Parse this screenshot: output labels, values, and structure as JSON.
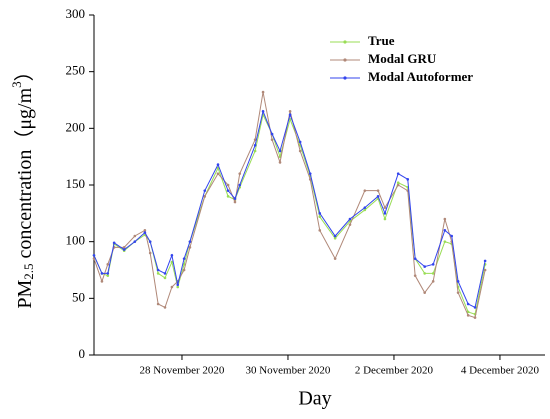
{
  "chart_data": {
    "type": "line",
    "ylabel": [
      "PM",
      "2.5",
      " concentration（μg/m",
      "3",
      "）"
    ],
    "xlabel": "Day",
    "x": [
      26.34,
      26.49,
      26.6,
      26.72,
      26.91,
      27.11,
      27.3,
      27.4,
      27.55,
      27.68,
      27.81,
      27.92,
      28.04,
      28.15,
      28.43,
      28.68,
      28.87,
      29.0,
      29.09,
      29.38,
      29.53,
      29.7,
      29.85,
      30.04,
      30.23,
      30.42,
      30.6,
      30.89,
      31.17,
      31.45,
      31.7,
      31.83,
      32.08,
      32.26,
      32.4,
      32.58,
      32.74,
      32.96,
      33.09,
      33.21,
      33.4,
      33.53,
      33.72
    ],
    "series": [
      {
        "name": "True",
        "color": "#99dd55",
        "values": [
          88,
          72,
          70,
          98,
          92,
          100,
          106,
          100,
          72,
          68,
          82,
          60,
          80,
          100,
          140,
          165,
          140,
          137,
          148,
          180,
          212,
          195,
          175,
          208,
          185,
          158,
          122,
          103,
          118,
          128,
          138,
          120,
          152,
          148,
          85,
          72,
          72,
          100,
          98,
          60,
          38,
          36,
          80
        ]
      },
      {
        "name": "Modal GRU",
        "color": "#b08878",
        "values": [
          85,
          65,
          80,
          95,
          95,
          105,
          110,
          90,
          45,
          42,
          60,
          65,
          75,
          95,
          140,
          160,
          150,
          135,
          160,
          190,
          232,
          190,
          170,
          215,
          180,
          155,
          110,
          85,
          115,
          145,
          145,
          130,
          150,
          145,
          70,
          55,
          65,
          120,
          100,
          55,
          35,
          33,
          75
        ]
      },
      {
        "name": "Modal Autoformer",
        "color": "#3344ee",
        "values": [
          88,
          72,
          72,
          99,
          93,
          100,
          108,
          100,
          75,
          72,
          88,
          62,
          85,
          100,
          145,
          168,
          145,
          138,
          150,
          185,
          215,
          195,
          180,
          212,
          188,
          160,
          125,
          105,
          120,
          130,
          140,
          125,
          160,
          155,
          85,
          78,
          80,
          110,
          105,
          65,
          45,
          42,
          83
        ]
      }
    ],
    "xlim": [
      26.34,
      34.85
    ],
    "xticks": [
      {
        "value": 28,
        "label": "28 November 2020"
      },
      {
        "value": 30,
        "label": "30 November 2020"
      },
      {
        "value": 32,
        "label": "2 December 2020"
      },
      {
        "value": 34,
        "label": "4 December 2020"
      }
    ],
    "ylim": [
      0,
      300
    ],
    "yticks": [
      0,
      50,
      100,
      150,
      200,
      250,
      300
    ],
    "legend": "upper right"
  }
}
